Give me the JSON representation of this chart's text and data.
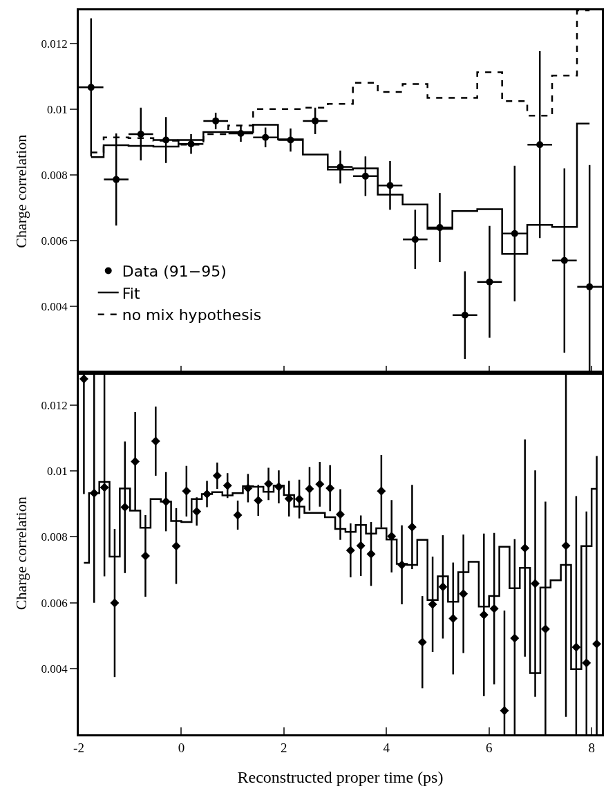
{
  "chart_data": [
    {
      "type": "scatter",
      "ylabel": "Charge correlation",
      "xlim": [
        -2,
        8.2
      ],
      "xticks": [
        -2,
        0,
        2,
        4,
        6,
        8
      ],
      "ylim": [
        0.002,
        0.013
      ],
      "yticks": [
        0.004,
        0.006,
        0.008,
        0.01,
        0.012
      ],
      "tick_labels": "y",
      "grid": false,
      "legend": "bottom left",
      "series": [
        {
          "name": "Data (91−95)",
          "marker": "circle",
          "color": "#000000",
          "x": [
            -1.76,
            -1.27,
            -0.79,
            -0.3,
            0.19,
            0.67,
            1.16,
            1.64,
            2.13,
            2.61,
            3.1,
            3.59,
            4.07,
            4.56,
            5.04,
            5.53,
            6.01,
            6.5,
            6.99,
            7.47,
            7.96
          ],
          "values": [
            0.01066,
            0.00786,
            0.00924,
            0.00906,
            0.00894,
            0.00964,
            0.00926,
            0.00914,
            0.00906,
            0.00964,
            0.00824,
            0.00796,
            0.00768,
            0.00604,
            0.0064,
            0.00374,
            0.00475,
            0.00622,
            0.00892,
            0.0054,
            0.0046
          ],
          "errors": [
            0.0021,
            0.0014,
            0.0008,
            0.0007,
            0.0003,
            0.00025,
            0.00025,
            0.0003,
            0.00035,
            0.0004,
            0.0005,
            0.0006,
            0.00074,
            0.0009,
            0.00105,
            0.00133,
            0.0017,
            0.00206,
            0.00284,
            0.0028,
            [
              0.002,
              0.0083
            ]
          ],
          "xerrors": [
            0.24,
            0.24,
            0.24,
            0.24,
            0.24,
            0.24,
            0.24,
            0.24,
            0.24,
            0.24,
            0.24,
            0.24,
            0.24,
            0.24,
            0.24,
            0.24,
            0.24,
            0.24,
            0.24,
            0.24,
            0.24
          ]
        },
        {
          "name": "Fit",
          "type": "step",
          "line_style": "solid",
          "color": "#000000",
          "x": [
            -1.76,
            -1.27,
            -0.79,
            -0.3,
            0.19,
            0.67,
            1.16,
            1.64,
            2.13,
            2.61,
            3.1,
            3.59,
            4.07,
            4.56,
            5.04,
            5.53,
            6.01,
            6.5,
            6.99,
            7.47,
            7.96
          ],
          "values": [
            0.00854,
            0.0089,
            0.00888,
            0.00886,
            0.00906,
            0.0093,
            0.0093,
            0.00952,
            0.00908,
            0.00862,
            0.00816,
            0.0082,
            0.0074,
            0.0071,
            0.00636,
            0.0069,
            0.00696,
            0.0056,
            0.00648,
            0.00642,
            0.00956
          ]
        },
        {
          "name": "no mix hypothesis",
          "type": "step",
          "line_style": "dashed",
          "color": "#000000",
          "x": [
            -1.76,
            -1.27,
            -0.79,
            -0.3,
            0.19,
            0.67,
            1.16,
            1.64,
            2.13,
            2.61,
            3.1,
            3.59,
            4.07,
            4.56,
            5.04,
            5.53,
            6.01,
            6.5,
            6.99,
            7.47,
            7.96
          ],
          "values": [
            0.00868,
            0.00914,
            0.00912,
            0.00904,
            0.00892,
            0.00924,
            0.0095,
            0.01,
            0.01,
            0.01004,
            0.01016,
            0.0108,
            0.01052,
            0.01076,
            0.01034,
            0.01034,
            0.01112,
            0.01024,
            0.0098,
            0.01102,
            0.013
          ]
        }
      ]
    },
    {
      "type": "scatter",
      "xlabel": "Reconstructed proper time (ps)",
      "ylabel": "Charge correlation",
      "xlim": [
        -2,
        8.2
      ],
      "xticks": [
        -2,
        0,
        2,
        4,
        6,
        8
      ],
      "ylim": [
        0.002,
        0.013
      ],
      "yticks": [
        0.004,
        0.006,
        0.008,
        0.01,
        0.012
      ],
      "grid": false,
      "series": [
        {
          "marker": "diamond",
          "color": "#000000",
          "x": [
            -1.9,
            -1.7,
            -1.5,
            -1.3,
            -1.1,
            -0.9,
            -0.7,
            -0.5,
            -0.3,
            -0.1,
            0.1,
            0.3,
            0.5,
            0.7,
            0.9,
            1.1,
            1.3,
            1.5,
            1.7,
            1.9,
            2.1,
            2.3,
            2.5,
            2.7,
            2.9,
            3.1,
            3.3,
            3.5,
            3.7,
            3.9,
            4.1,
            4.3,
            4.5,
            4.7,
            4.9,
            5.1,
            5.3,
            5.5,
            5.7,
            5.9,
            6.1,
            6.3,
            6.5,
            6.7,
            6.9,
            7.1,
            7.3,
            7.5,
            7.7,
            7.9,
            8.1
          ],
          "values": [
            0.0128,
            0.00933,
            0.0095,
            0.00599,
            0.0089,
            0.01029,
            0.00742,
            0.01091,
            0.00907,
            0.00772,
            0.00939,
            0.00877,
            0.0093,
            0.00986,
            0.00956,
            0.00866,
            0.00948,
            0.00911,
            0.00961,
            0.00952,
            0.00916,
            0.00915,
            0.00946,
            0.0096,
            0.00948,
            0.00868,
            0.00759,
            0.00773,
            0.00748,
            0.00939,
            0.00802,
            0.00715,
            0.0083,
            0.0048,
            0.00595,
            0.00648,
            0.00552,
            0.00627,
            null,
            0.00563,
            0.00582,
            0.00272,
            0.00492,
            0.00766,
            0.00658,
            0.0052,
            null,
            0.00773,
            0.00465,
            0.00417,
            0.00475
          ],
          "errors": [
            [
              0.0093,
              0.013
            ],
            [
              0.006,
              0.013
            ],
            [
              0.0068,
              0.013
            ],
            0.00225,
            0.002,
            0.0015,
            0.00124,
            0.00105,
            0.0009,
            0.00115,
            0.00077,
            0.00043,
            0.0004,
            0.0004,
            0.00038,
            0.00044,
            0.00043,
            0.00047,
            0.00049,
            0.0005,
            0.00054,
            0.00059,
            0.00066,
            0.00068,
            0.0007,
            0.00077,
            0.00082,
            0.00092,
            0.00097,
            0.0011,
            0.0011,
            0.0012,
            0.00128,
            0.0014,
            0.00145,
            0.00157,
            0.0017,
            0.0018,
            null,
            0.00247,
            0.0023,
            [
              0.002,
              0.00576
            ],
            [
              0.002,
              0.00793
            ],
            0.0033,
            0.00344,
            [
              0.002,
              0.00907
            ],
            null,
            [
              0.00253,
              0.013
            ],
            [
              0.002,
              0.00924
            ],
            [
              0.002,
              0.00877
            ],
            [
              0.002,
              0.01046
            ]
          ]
        },
        {
          "type": "step",
          "line_style": "solid",
          "color": "#000000",
          "x": [
            -1.9,
            -1.7,
            -1.5,
            -1.3,
            -1.1,
            -0.9,
            -0.7,
            -0.5,
            -0.3,
            -0.1,
            0.1,
            0.3,
            0.5,
            0.7,
            0.9,
            1.1,
            1.3,
            1.5,
            1.7,
            1.9,
            2.1,
            2.3,
            2.5,
            2.7,
            2.9,
            3.1,
            3.3,
            3.5,
            3.7,
            3.9,
            4.1,
            4.3,
            4.5,
            4.7,
            4.9,
            5.1,
            5.3,
            5.5,
            5.7,
            5.9,
            6.1,
            6.3,
            6.5,
            6.7,
            6.9,
            7.1,
            7.3,
            7.5,
            7.7,
            7.9,
            8.1
          ],
          "values": [
            0.00721,
            0.00933,
            0.00967,
            0.0074,
            0.00947,
            0.0088,
            0.00828,
            0.00915,
            0.00907,
            0.00848,
            0.00845,
            0.00915,
            0.0093,
            0.00936,
            0.00926,
            0.00933,
            0.00954,
            0.00952,
            0.00937,
            0.00956,
            0.00927,
            0.00892,
            0.00873,
            0.00873,
            0.0086,
            0.00824,
            0.00815,
            0.00836,
            0.0081,
            0.00826,
            0.00792,
            0.00718,
            0.00715,
            0.00791,
            0.00608,
            0.0068,
            0.00603,
            0.00693,
            0.00724,
            0.00588,
            0.0062,
            0.0077,
            0.00644,
            0.00706,
            0.00386,
            0.00646,
            0.00668,
            0.00715,
            0.00398,
            0.00772,
            0.00946
          ]
        }
      ]
    }
  ]
}
